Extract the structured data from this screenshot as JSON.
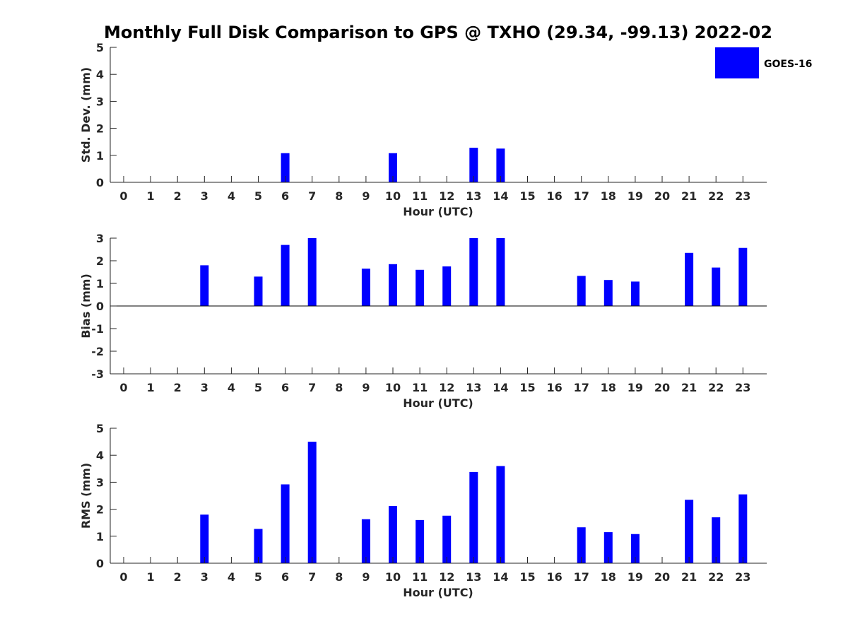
{
  "title": "Monthly Full Disk Comparison to GPS @ TXHO (29.34, -99.13) 2022-02",
  "legend": {
    "label": "GOES-16",
    "color": "#0000ff"
  },
  "chart_data": [
    {
      "type": "bar",
      "xlabel": "Hour (UTC)",
      "ylabel": "Std. Dev. (mm)",
      "ylim": [
        0,
        5
      ],
      "yticks": [
        "0",
        "1",
        "2",
        "3",
        "4",
        "5"
      ],
      "categories": [
        "0",
        "1",
        "2",
        "3",
        "4",
        "5",
        "6",
        "7",
        "8",
        "9",
        "10",
        "11",
        "12",
        "13",
        "14",
        "15",
        "16",
        "17",
        "18",
        "19",
        "20",
        "21",
        "22",
        "23"
      ],
      "series": [
        {
          "name": "GOES-16",
          "color": "#0000ff",
          "values": [
            null,
            null,
            null,
            null,
            null,
            null,
            1.08,
            null,
            null,
            null,
            1.08,
            null,
            null,
            1.28,
            1.25,
            null,
            null,
            null,
            null,
            null,
            null,
            null,
            null,
            null
          ]
        }
      ]
    },
    {
      "type": "bar",
      "xlabel": "Hour (UTC)",
      "ylabel": "Bias (mm)",
      "ylim": [
        -3,
        3
      ],
      "yticks": [
        "-3",
        "-2",
        "-1",
        "0",
        "1",
        "2",
        "3"
      ],
      "categories": [
        "0",
        "1",
        "2",
        "3",
        "4",
        "5",
        "6",
        "7",
        "8",
        "9",
        "10",
        "11",
        "12",
        "13",
        "14",
        "15",
        "16",
        "17",
        "18",
        "19",
        "20",
        "21",
        "22",
        "23"
      ],
      "series": [
        {
          "name": "GOES-16",
          "color": "#0000ff",
          "values": [
            null,
            null,
            null,
            1.8,
            null,
            1.3,
            2.7,
            3.0,
            null,
            1.65,
            1.85,
            1.6,
            1.75,
            3.0,
            3.0,
            null,
            null,
            1.33,
            1.15,
            1.08,
            null,
            2.35,
            1.7,
            2.57
          ]
        }
      ]
    },
    {
      "type": "bar",
      "xlabel": "Hour (UTC)",
      "ylabel": "RMS (mm)",
      "ylim": [
        0,
        5
      ],
      "yticks": [
        "0",
        "1",
        "2",
        "3",
        "4",
        "5"
      ],
      "categories": [
        "0",
        "1",
        "2",
        "3",
        "4",
        "5",
        "6",
        "7",
        "8",
        "9",
        "10",
        "11",
        "12",
        "13",
        "14",
        "15",
        "16",
        "17",
        "18",
        "19",
        "20",
        "21",
        "22",
        "23"
      ],
      "series": [
        {
          "name": "GOES-16",
          "color": "#0000ff",
          "values": [
            null,
            null,
            null,
            1.8,
            null,
            1.27,
            2.92,
            4.5,
            null,
            1.63,
            2.12,
            1.6,
            1.76,
            3.38,
            3.6,
            null,
            null,
            1.33,
            1.15,
            1.08,
            null,
            2.35,
            1.7,
            2.55
          ]
        }
      ]
    }
  ]
}
